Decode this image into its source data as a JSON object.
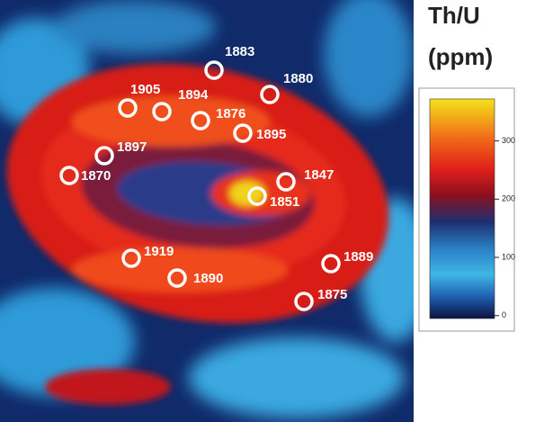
{
  "legend": {
    "title": [
      "Th/U",
      "(ppm)"
    ],
    "lim": [
      -5,
      372
    ],
    "ticks": [
      0,
      100,
      200,
      300
    ]
  },
  "spots": [
    1883,
    1880,
    1905,
    1894,
    1876,
    1895,
    1897,
    1870,
    1847,
    1851,
    1919,
    1890,
    1889,
    1875
  ]
}
